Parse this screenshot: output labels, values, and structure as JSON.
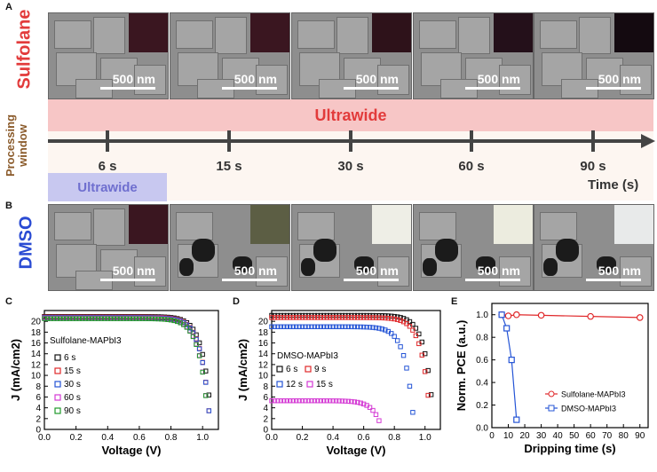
{
  "labels": {
    "A": "A",
    "B": "B",
    "C": "C",
    "D": "D",
    "E": "E"
  },
  "row_top": {
    "label": "Sulfolane",
    "color": "#e23b3b"
  },
  "row_bottom": {
    "label": "DMSO",
    "color": "#2a4bd3"
  },
  "processing_window": {
    "label_line1": "Processing",
    "label_line2": "window",
    "color": "#8a5a2a"
  },
  "ultrawide_top": {
    "text": "Ultrawide",
    "bg": "#f7c6c6",
    "text_color": "#e23b3b"
  },
  "ultrawide_bottom": {
    "text": "Ultrawide",
    "bg": "#c8c8f0",
    "text_color": "#6f6fcf"
  },
  "timeline": {
    "ticks": [
      "6 s",
      "15 s",
      "30 s",
      "60 s",
      "90 s"
    ],
    "axis_label": "Time (s)"
  },
  "sem_top": [
    {
      "scale": "500 nm",
      "inset": "#3a1620"
    },
    {
      "scale": "500 nm",
      "inset": "#3a1620"
    },
    {
      "scale": "500 nm",
      "inset": "#2e121a"
    },
    {
      "scale": "500 nm",
      "inset": "#24101a"
    },
    {
      "scale": "500 nm",
      "inset": "#140a10"
    }
  ],
  "sem_bottom": [
    {
      "scale": "500 nm",
      "inset": "#3a1620"
    },
    {
      "scale": "500 nm",
      "inset": "#5c5e44"
    },
    {
      "scale": "500 nm",
      "inset": "#eeeee6"
    },
    {
      "scale": "500 nm",
      "inset": "#ececdf"
    },
    {
      "scale": "500 nm",
      "inset": "#e8eaea"
    }
  ],
  "chart_data": [
    {
      "type": "line",
      "title": "Sulfolane-MAPbI3",
      "xlabel": "Voltage (V)",
      "ylabel": "J (mA/cm2)",
      "xlim": [
        0.0,
        1.1
      ],
      "ylim": [
        0,
        22
      ],
      "xticks": [
        "0.0",
        "0.2",
        "0.4",
        "0.6",
        "0.8",
        "1.0"
      ],
      "yticks": [
        "0",
        "2",
        "4",
        "6",
        "8",
        "10",
        "12",
        "14",
        "16",
        "18",
        "20"
      ],
      "series": [
        {
          "name": "6 s",
          "color": "#111111",
          "jsc": 20.9,
          "voc": 1.06
        },
        {
          "name": "15 s",
          "color": "#e0282a",
          "jsc": 20.8,
          "voc": 1.05
        },
        {
          "name": "30 s",
          "color": "#2454d6",
          "jsc": 20.7,
          "voc": 1.05
        },
        {
          "name": "60 s",
          "color": "#d43ad4",
          "jsc": 20.6,
          "voc": 1.04
        },
        {
          "name": "90 s",
          "color": "#1f9a2a",
          "jsc": 20.5,
          "voc": 1.04
        }
      ]
    },
    {
      "type": "line",
      "title": "DMSO-MAPbI3",
      "xlabel": "Voltage (V)",
      "ylabel": "J (mA/cm2)",
      "xlim": [
        0.0,
        1.1
      ],
      "ylim": [
        0,
        22
      ],
      "xticks": [
        "0.0",
        "0.2",
        "0.4",
        "0.6",
        "0.8",
        "1.0"
      ],
      "yticks": [
        "0",
        "2",
        "4",
        "6",
        "8",
        "10",
        "12",
        "14",
        "16",
        "18",
        "20"
      ],
      "series": [
        {
          "name": "6 s",
          "color": "#111111",
          "jsc": 21.1,
          "voc": 1.06
        },
        {
          "name": "9 s",
          "color": "#e0282a",
          "jsc": 20.7,
          "voc": 1.04
        },
        {
          "name": "12 s",
          "color": "#2454d6",
          "jsc": 19.0,
          "voc": 0.93
        },
        {
          "name": "15 s",
          "color": "#d43ad4",
          "jsc": 5.3,
          "voc": 0.72
        }
      ]
    },
    {
      "type": "line",
      "xlabel": "Dripping time (s)",
      "ylabel": "Norm. PCE (a.u.)",
      "xlim": [
        0,
        95
      ],
      "ylim": [
        0,
        1.1
      ],
      "xticks": [
        "0",
        "10",
        "20",
        "30",
        "40",
        "50",
        "60",
        "70",
        "80",
        "90"
      ],
      "yticks": [
        "0.0",
        "0.2",
        "0.4",
        "0.6",
        "0.8",
        "1.0"
      ],
      "series": [
        {
          "name": "Sulfolane-MAPbI3",
          "color": "#e0282a",
          "x": [
            6,
            10,
            15,
            30,
            60,
            90
          ],
          "y": [
            1.0,
            0.99,
            1.0,
            0.995,
            0.985,
            0.975
          ]
        },
        {
          "name": "DMSO-MAPbI3",
          "color": "#2454d6",
          "x": [
            6,
            9,
            12,
            15
          ],
          "y": [
            1.0,
            0.88,
            0.6,
            0.07
          ]
        }
      ]
    }
  ]
}
